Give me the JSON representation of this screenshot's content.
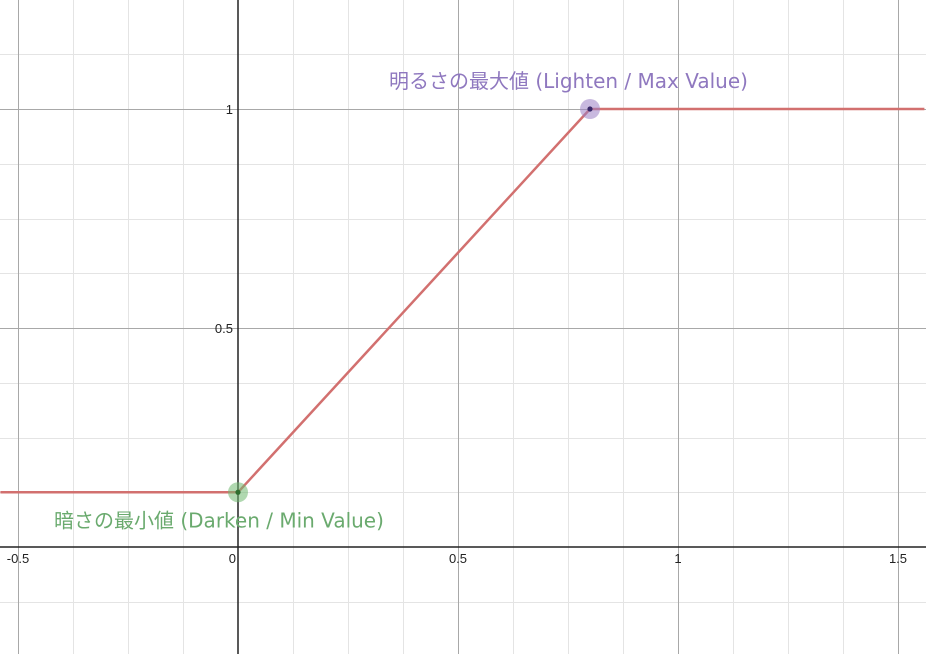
{
  "chart_data": {
    "type": "line",
    "x_ticks": [
      "-0.5",
      "0",
      "0.5",
      "1",
      "1.5"
    ],
    "y_ticks": [
      "0.5",
      "1"
    ],
    "xlim": [
      -0.54,
      1.56
    ],
    "ylim": [
      -0.24,
      1.24
    ],
    "grid": true,
    "series": [
      {
        "points": [
          [
            -0.54,
            0.125
          ],
          [
            0,
            0.125
          ],
          [
            0.8,
            1
          ],
          [
            1.56,
            1
          ]
        ],
        "color": "#d2706f"
      }
    ],
    "points": [
      {
        "x": 0,
        "y": 0.125,
        "color": "#6fb86f"
      },
      {
        "x": 0.8,
        "y": 1,
        "color": "#9a80c4"
      }
    ],
    "annotations": [
      {
        "text": "暗さの最小値 (Darken / Min Value)",
        "x": 0,
        "y": 0.125,
        "color": "#6aaa6e"
      },
      {
        "text": "明るさの最大値 (Lighten / Max Value)",
        "x": 0.8,
        "y": 1,
        "color": "#8f78bf"
      }
    ]
  }
}
